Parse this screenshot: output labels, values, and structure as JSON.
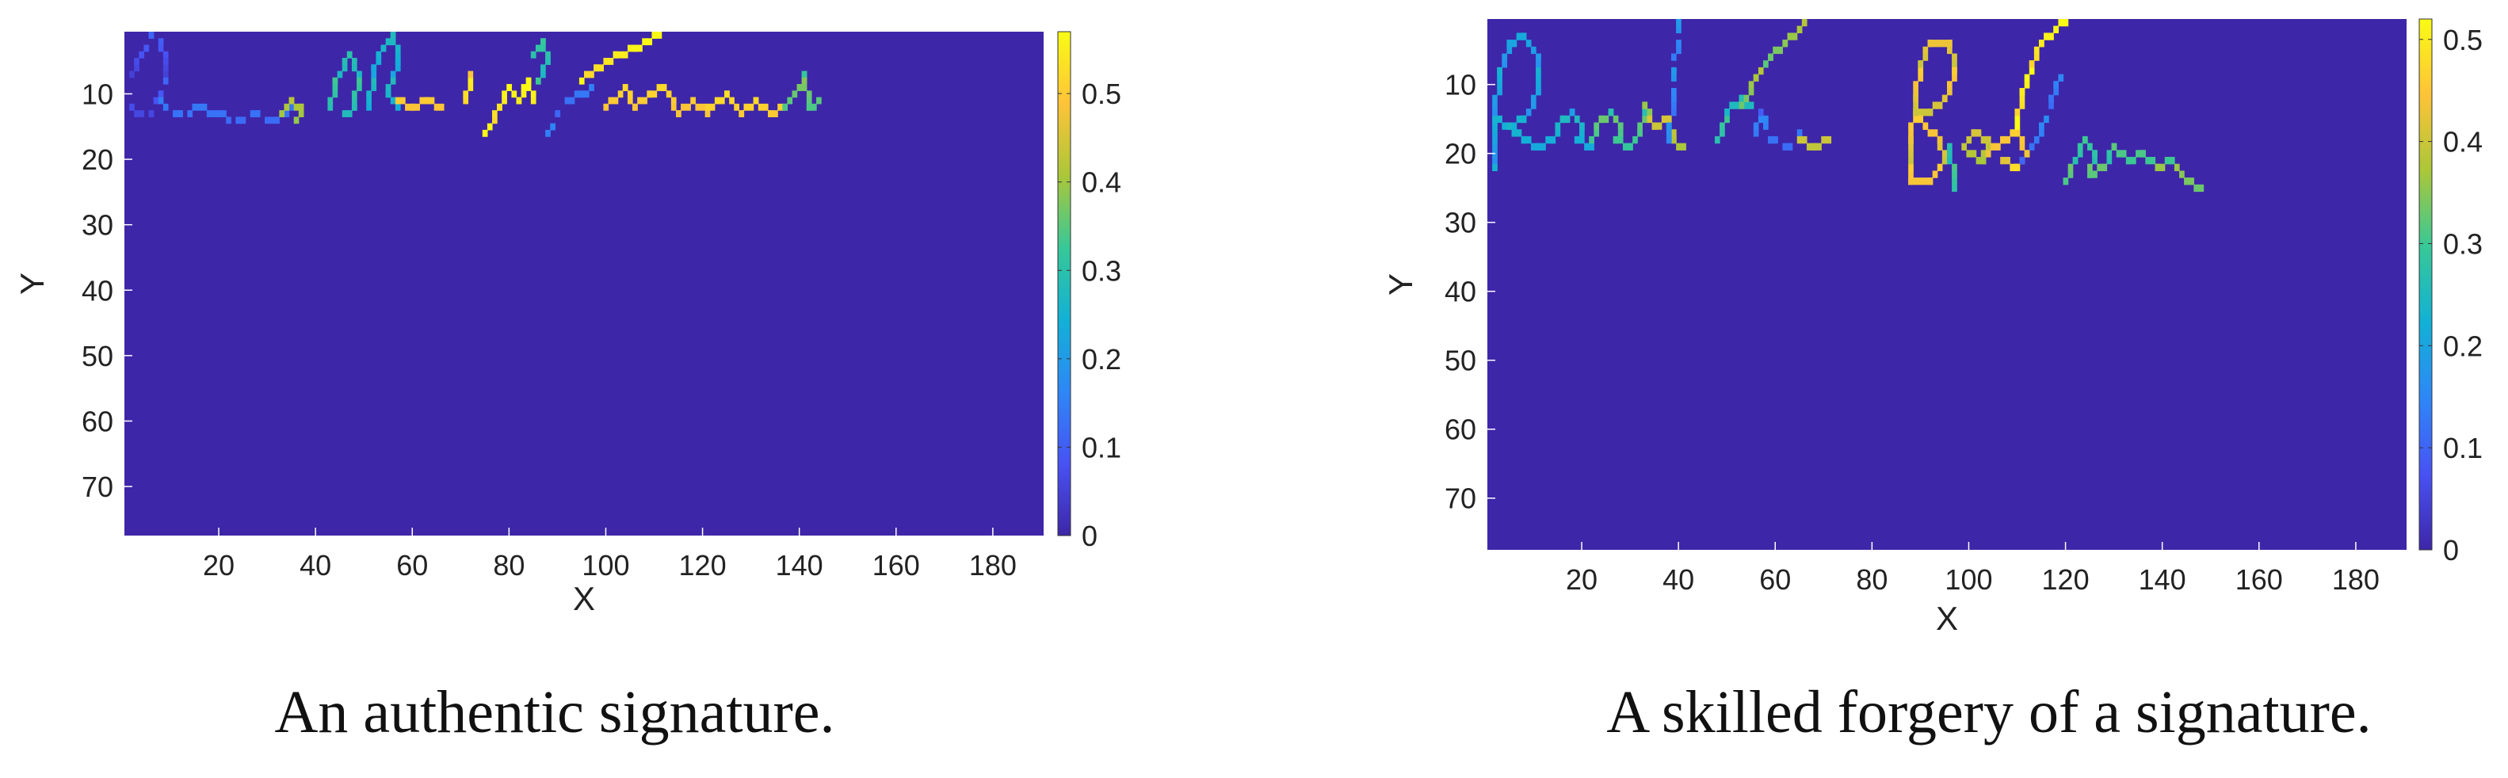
{
  "chart_data": [
    {
      "type": "heatmap",
      "caption": "An authentic signature.",
      "xlabel": "X",
      "ylabel": "Y",
      "xlim": [
        0.5,
        190.5
      ],
      "ylim": [
        0.5,
        77.5
      ],
      "xticks": [
        20,
        40,
        60,
        80,
        100,
        120,
        140,
        160,
        180
      ],
      "yticks": [
        10,
        20,
        30,
        40,
        50,
        60,
        70
      ],
      "colorbar": {
        "min": 0,
        "max": 0.57,
        "ticks": [
          0,
          0.1,
          0.2,
          0.3,
          0.4,
          0.5
        ]
      },
      "background_value": 0,
      "colormap": "parula",
      "strokes": [
        {
          "value": 0.08,
          "points": [
            [
              2,
              7
            ],
            [
              4,
              4
            ],
            [
              6,
              1
            ],
            [
              8,
              2
            ],
            [
              9,
              6
            ],
            [
              8,
              10
            ],
            [
              6,
              13
            ],
            [
              4,
              13
            ],
            [
              2,
              12
            ]
          ]
        },
        {
          "value": 0.15,
          "points": [
            [
              8,
              11
            ],
            [
              12,
              13
            ],
            [
              16,
              12
            ],
            [
              20,
              13
            ],
            [
              24,
              14
            ],
            [
              28,
              13
            ],
            [
              32,
              14
            ],
            [
              35,
              12
            ]
          ]
        },
        {
          "value": 0.42,
          "points": [
            [
              33,
              13
            ],
            [
              35,
              11
            ],
            [
              37,
              12
            ],
            [
              36,
              14
            ]
          ]
        },
        {
          "value": 0.3,
          "points": [
            [
              43,
              12
            ],
            [
              44,
              8
            ],
            [
              47,
              4
            ],
            [
              49,
              7
            ],
            [
              48,
              12
            ],
            [
              46,
              13
            ]
          ]
        },
        {
          "value": 0.25,
          "points": [
            [
              51,
              12
            ],
            [
              52,
              6
            ],
            [
              54,
              3
            ],
            [
              56,
              1
            ],
            [
              57,
              5
            ],
            [
              55,
              10
            ],
            [
              57,
              12
            ]
          ]
        },
        {
          "value": 0.5,
          "points": [
            [
              57,
              11
            ],
            [
              60,
              12
            ],
            [
              63,
              11
            ],
            [
              66,
              12
            ]
          ]
        },
        {
          "value": 0.52,
          "points": [
            [
              71,
              11
            ],
            [
              72,
              7
            ]
          ]
        },
        {
          "value": 0.55,
          "points": [
            [
              75,
              16
            ],
            [
              78,
              12
            ],
            [
              80,
              9
            ],
            [
              82,
              11
            ],
            [
              84,
              8
            ],
            [
              85,
              11
            ]
          ]
        },
        {
          "value": 0.3,
          "points": [
            [
              85,
              4
            ],
            [
              87,
              2
            ],
            [
              88,
              5
            ],
            [
              86,
              8
            ]
          ]
        },
        {
          "value": 0.13,
          "points": [
            [
              88,
              16
            ],
            [
              90,
              13
            ],
            [
              92,
              11
            ],
            [
              95,
              10
            ],
            [
              98,
              9
            ]
          ]
        },
        {
          "value": 0.55,
          "points": [
            [
              95,
              8
            ],
            [
              98,
              6
            ],
            [
              102,
              4
            ],
            [
              106,
              3
            ],
            [
              110,
              1
            ],
            [
              113,
              0
            ]
          ]
        },
        {
          "value": 0.5,
          "points": [
            [
              100,
              12
            ],
            [
              104,
              9
            ],
            [
              106,
              12
            ],
            [
              109,
              10
            ],
            [
              112,
              9
            ],
            [
              115,
              13
            ],
            [
              118,
              11
            ],
            [
              121,
              13
            ]
          ]
        },
        {
          "value": 0.52,
          "points": [
            [
              121,
              12
            ],
            [
              125,
              10
            ],
            [
              128,
              13
            ],
            [
              131,
              11
            ],
            [
              134,
              13
            ],
            [
              137,
              12
            ]
          ]
        },
        {
          "value": 0.35,
          "points": [
            [
              137,
              12
            ],
            [
              140,
              9
            ],
            [
              141,
              7
            ],
            [
              142,
              12
            ],
            [
              144,
              11
            ]
          ]
        }
      ]
    },
    {
      "type": "heatmap",
      "caption": "A skilled forgery of a signature.",
      "xlabel": "X",
      "ylabel": "Y",
      "xlim": [
        0.5,
        190.5
      ],
      "ylim": [
        0.5,
        77.5
      ],
      "xticks": [
        20,
        40,
        60,
        80,
        100,
        120,
        140,
        160,
        180
      ],
      "yticks": [
        10,
        20,
        30,
        40,
        50,
        60,
        70
      ],
      "colorbar": {
        "min": 0,
        "max": 0.52,
        "ticks": [
          0,
          0.1,
          0.2,
          0.3,
          0.4,
          0.5
        ]
      },
      "background_value": 0,
      "colormap": "parula",
      "strokes": [
        {
          "value": 0.2,
          "points": [
            [
              2,
              22
            ],
            [
              2,
              15
            ],
            [
              3,
              8
            ],
            [
              5,
              4
            ],
            [
              8,
              3
            ],
            [
              11,
              6
            ],
            [
              11,
              11
            ],
            [
              8,
              15
            ],
            [
              5,
              16
            ],
            [
              3,
              15
            ]
          ]
        },
        {
          "value": 0.22,
          "points": [
            [
              5,
              16
            ],
            [
              8,
              18
            ],
            [
              11,
              19
            ],
            [
              14,
              18
            ],
            [
              16,
              15
            ],
            [
              18,
              14
            ],
            [
              20,
              16
            ],
            [
              19,
              18
            ],
            [
              22,
              19
            ]
          ]
        },
        {
          "value": 0.3,
          "points": [
            [
              22,
              18
            ],
            [
              24,
              15
            ],
            [
              26,
              14
            ],
            [
              28,
              16
            ],
            [
              27,
              18
            ],
            [
              30,
              19
            ],
            [
              32,
              17
            ],
            [
              33,
              13
            ]
          ]
        },
        {
          "value": 0.38,
          "points": [
            [
              33,
              13
            ],
            [
              35,
              16
            ],
            [
              38,
              15
            ],
            [
              39,
              18
            ],
            [
              41,
              19
            ]
          ]
        },
        {
          "value": 0.15,
          "points": [
            [
              38,
              18
            ],
            [
              39,
              12
            ],
            [
              39,
              8
            ],
            [
              40,
              3
            ],
            [
              40,
              0
            ]
          ]
        },
        {
          "value": 0.27,
          "points": [
            [
              48,
              18
            ],
            [
              50,
              14
            ],
            [
              53,
              12
            ],
            [
              55,
              13
            ]
          ]
        },
        {
          "value": 0.35,
          "points": [
            [
              53,
              13
            ],
            [
              56,
              9
            ],
            [
              59,
              6
            ],
            [
              62,
              4
            ],
            [
              65,
              2
            ],
            [
              67,
              0
            ],
            [
              69,
              0
            ]
          ]
        },
        {
          "value": 0.12,
          "points": [
            [
              55,
              18
            ],
            [
              57,
              14
            ],
            [
              59,
              18
            ],
            [
              63,
              19
            ],
            [
              65,
              17
            ]
          ]
        },
        {
          "value": 0.4,
          "points": [
            [
              65,
              18
            ],
            [
              68,
              19
            ],
            [
              71,
              18
            ]
          ]
        },
        {
          "value": 0.43,
          "points": [
            [
              88,
              24
            ],
            [
              88,
              18
            ],
            [
              89,
              12
            ],
            [
              90,
              7
            ],
            [
              92,
              4
            ],
            [
              96,
              4
            ],
            [
              97,
              8
            ],
            [
              95,
              12
            ],
            [
              92,
              14
            ],
            [
              89,
              14
            ],
            [
              91,
              16
            ],
            [
              94,
              18
            ],
            [
              95,
              21
            ],
            [
              92,
              24
            ],
            [
              88,
              24
            ]
          ]
        },
        {
          "value": 0.28,
          "points": [
            [
              96,
              19
            ],
            [
              97,
              25
            ]
          ]
        },
        {
          "value": 0.4,
          "points": [
            [
              99,
              19
            ],
            [
              101,
              17
            ],
            [
              104,
              18
            ],
            [
              103,
              21
            ],
            [
              100,
              20
            ]
          ]
        },
        {
          "value": 0.45,
          "points": [
            [
              104,
              20
            ],
            [
              107,
              18
            ],
            [
              110,
              17
            ],
            [
              112,
              20
            ],
            [
              110,
              22
            ],
            [
              107,
              21
            ]
          ]
        },
        {
          "value": 0.5,
          "points": [
            [
              110,
              16
            ],
            [
              111,
              11
            ],
            [
              113,
              7
            ],
            [
              115,
              4
            ],
            [
              118,
              2
            ],
            [
              121,
              0
            ],
            [
              125,
              0
            ],
            [
              127,
              0
            ]
          ]
        },
        {
          "value": 0.13,
          "points": [
            [
              111,
              21
            ],
            [
              114,
              18
            ],
            [
              117,
              12
            ],
            [
              118,
              10
            ],
            [
              120,
              8
            ]
          ]
        },
        {
          "value": 0.3,
          "points": [
            [
              120,
              24
            ],
            [
              122,
              21
            ],
            [
              124,
              18
            ],
            [
              126,
              20
            ],
            [
              125,
              23
            ],
            [
              128,
              22
            ],
            [
              130,
              19
            ]
          ]
        },
        {
          "value": 0.33,
          "points": [
            [
              130,
              19
            ],
            [
              133,
              21
            ],
            [
              136,
              20
            ],
            [
              139,
              22
            ],
            [
              142,
              21
            ],
            [
              145,
              24
            ],
            [
              148,
              25
            ]
          ]
        }
      ]
    }
  ]
}
